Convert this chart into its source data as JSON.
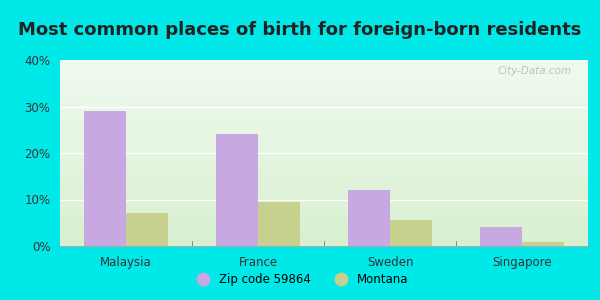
{
  "title": "Most common places of birth for foreign-born residents",
  "categories": [
    "Malaysia",
    "France",
    "Sweden",
    "Singapore"
  ],
  "zip_values": [
    29,
    24,
    12,
    4
  ],
  "montana_values": [
    7,
    9.5,
    5.5,
    0.8
  ],
  "zip_color": "#c8a8e0",
  "montana_color": "#c8d090",
  "ylim": [
    0,
    40
  ],
  "yticks": [
    0,
    10,
    20,
    30,
    40
  ],
  "ytick_labels": [
    "0%",
    "10%",
    "20%",
    "30%",
    "40%"
  ],
  "legend_zip": "Zip code 59864",
  "legend_montana": "Montana",
  "bar_width": 0.32,
  "background_outer": "#00e8e8",
  "title_fontsize": 13,
  "watermark": "City-Data.com",
  "bg_top": "#f0faf0",
  "bg_bottom": "#d8f0d0"
}
